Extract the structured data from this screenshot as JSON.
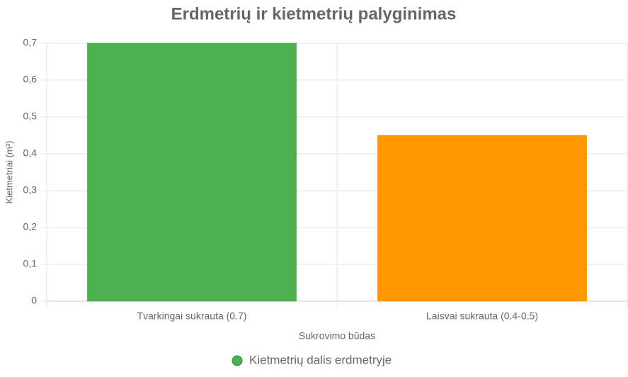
{
  "chart_data": {
    "type": "bar",
    "title": "Erdmetrių ir kietmetrių palyginimas",
    "x_label": "Sukrovimo būdas",
    "y_label": "Kietmetriai (m³)",
    "categories": [
      "Tvarkingai sukrauta (0.7)",
      "Laisvai sukrauta (0.4-0.5)"
    ],
    "series": [
      {
        "name": "Kietmetrių dalis erdmetryje",
        "colors": [
          "#4caf50",
          "#ff9800"
        ],
        "values": [
          0.7,
          0.45
        ]
      }
    ],
    "ylim": [
      0,
      0.7
    ],
    "yticks": [
      0,
      {
        "value": 0.1,
        "label": "0,1"
      },
      {
        "value": 0.2,
        "label": "0,2"
      },
      {
        "value": 0.3,
        "label": "0,3"
      },
      {
        "value": 0.4,
        "label": "0,4"
      },
      {
        "value": 0.5,
        "label": "0,5"
      },
      {
        "value": 0.6,
        "label": "0,6"
      },
      {
        "value": 0.7,
        "label": "0,7"
      }
    ],
    "grid": true,
    "legend": "bottom"
  }
}
